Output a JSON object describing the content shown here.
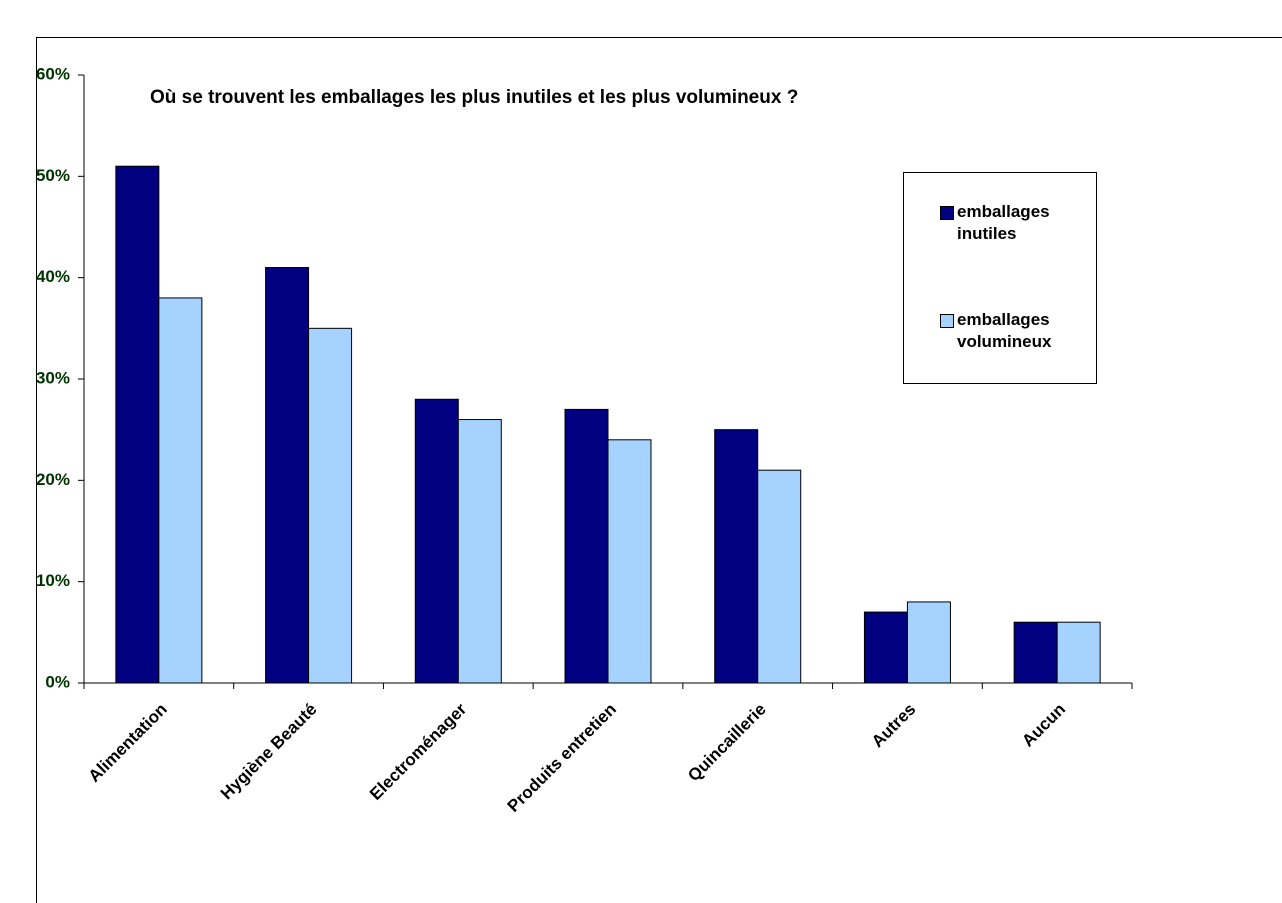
{
  "chart_data": {
    "type": "bar",
    "title": "Où se trouvent les emballages les plus inutiles et les plus volumineux ?",
    "categories": [
      "Alimentation",
      "Hygiène Beauté",
      "Electroménager",
      "Produits entretien",
      "Quincaillerie",
      "Autres",
      "Aucun"
    ],
    "series": [
      {
        "name": "emballages inutiles",
        "color": "#000080",
        "values": [
          51,
          41,
          28,
          27,
          25,
          7,
          6
        ]
      },
      {
        "name": "emballages volumineux",
        "color": "#a6d2ff",
        "values": [
          38,
          35,
          26,
          24,
          21,
          8,
          6
        ]
      }
    ],
    "ylim": [
      0,
      60
    ],
    "yticks": [
      {
        "value": 0,
        "label": "0%"
      },
      {
        "value": 10,
        "label": "10%"
      },
      {
        "value": 20,
        "label": "20%"
      },
      {
        "value": 30,
        "label": "30%"
      },
      {
        "value": 40,
        "label": "40%"
      },
      {
        "value": 50,
        "label": "50%"
      },
      {
        "value": 60,
        "label": "60%"
      }
    ],
    "grid": false,
    "legend": "upper right"
  }
}
